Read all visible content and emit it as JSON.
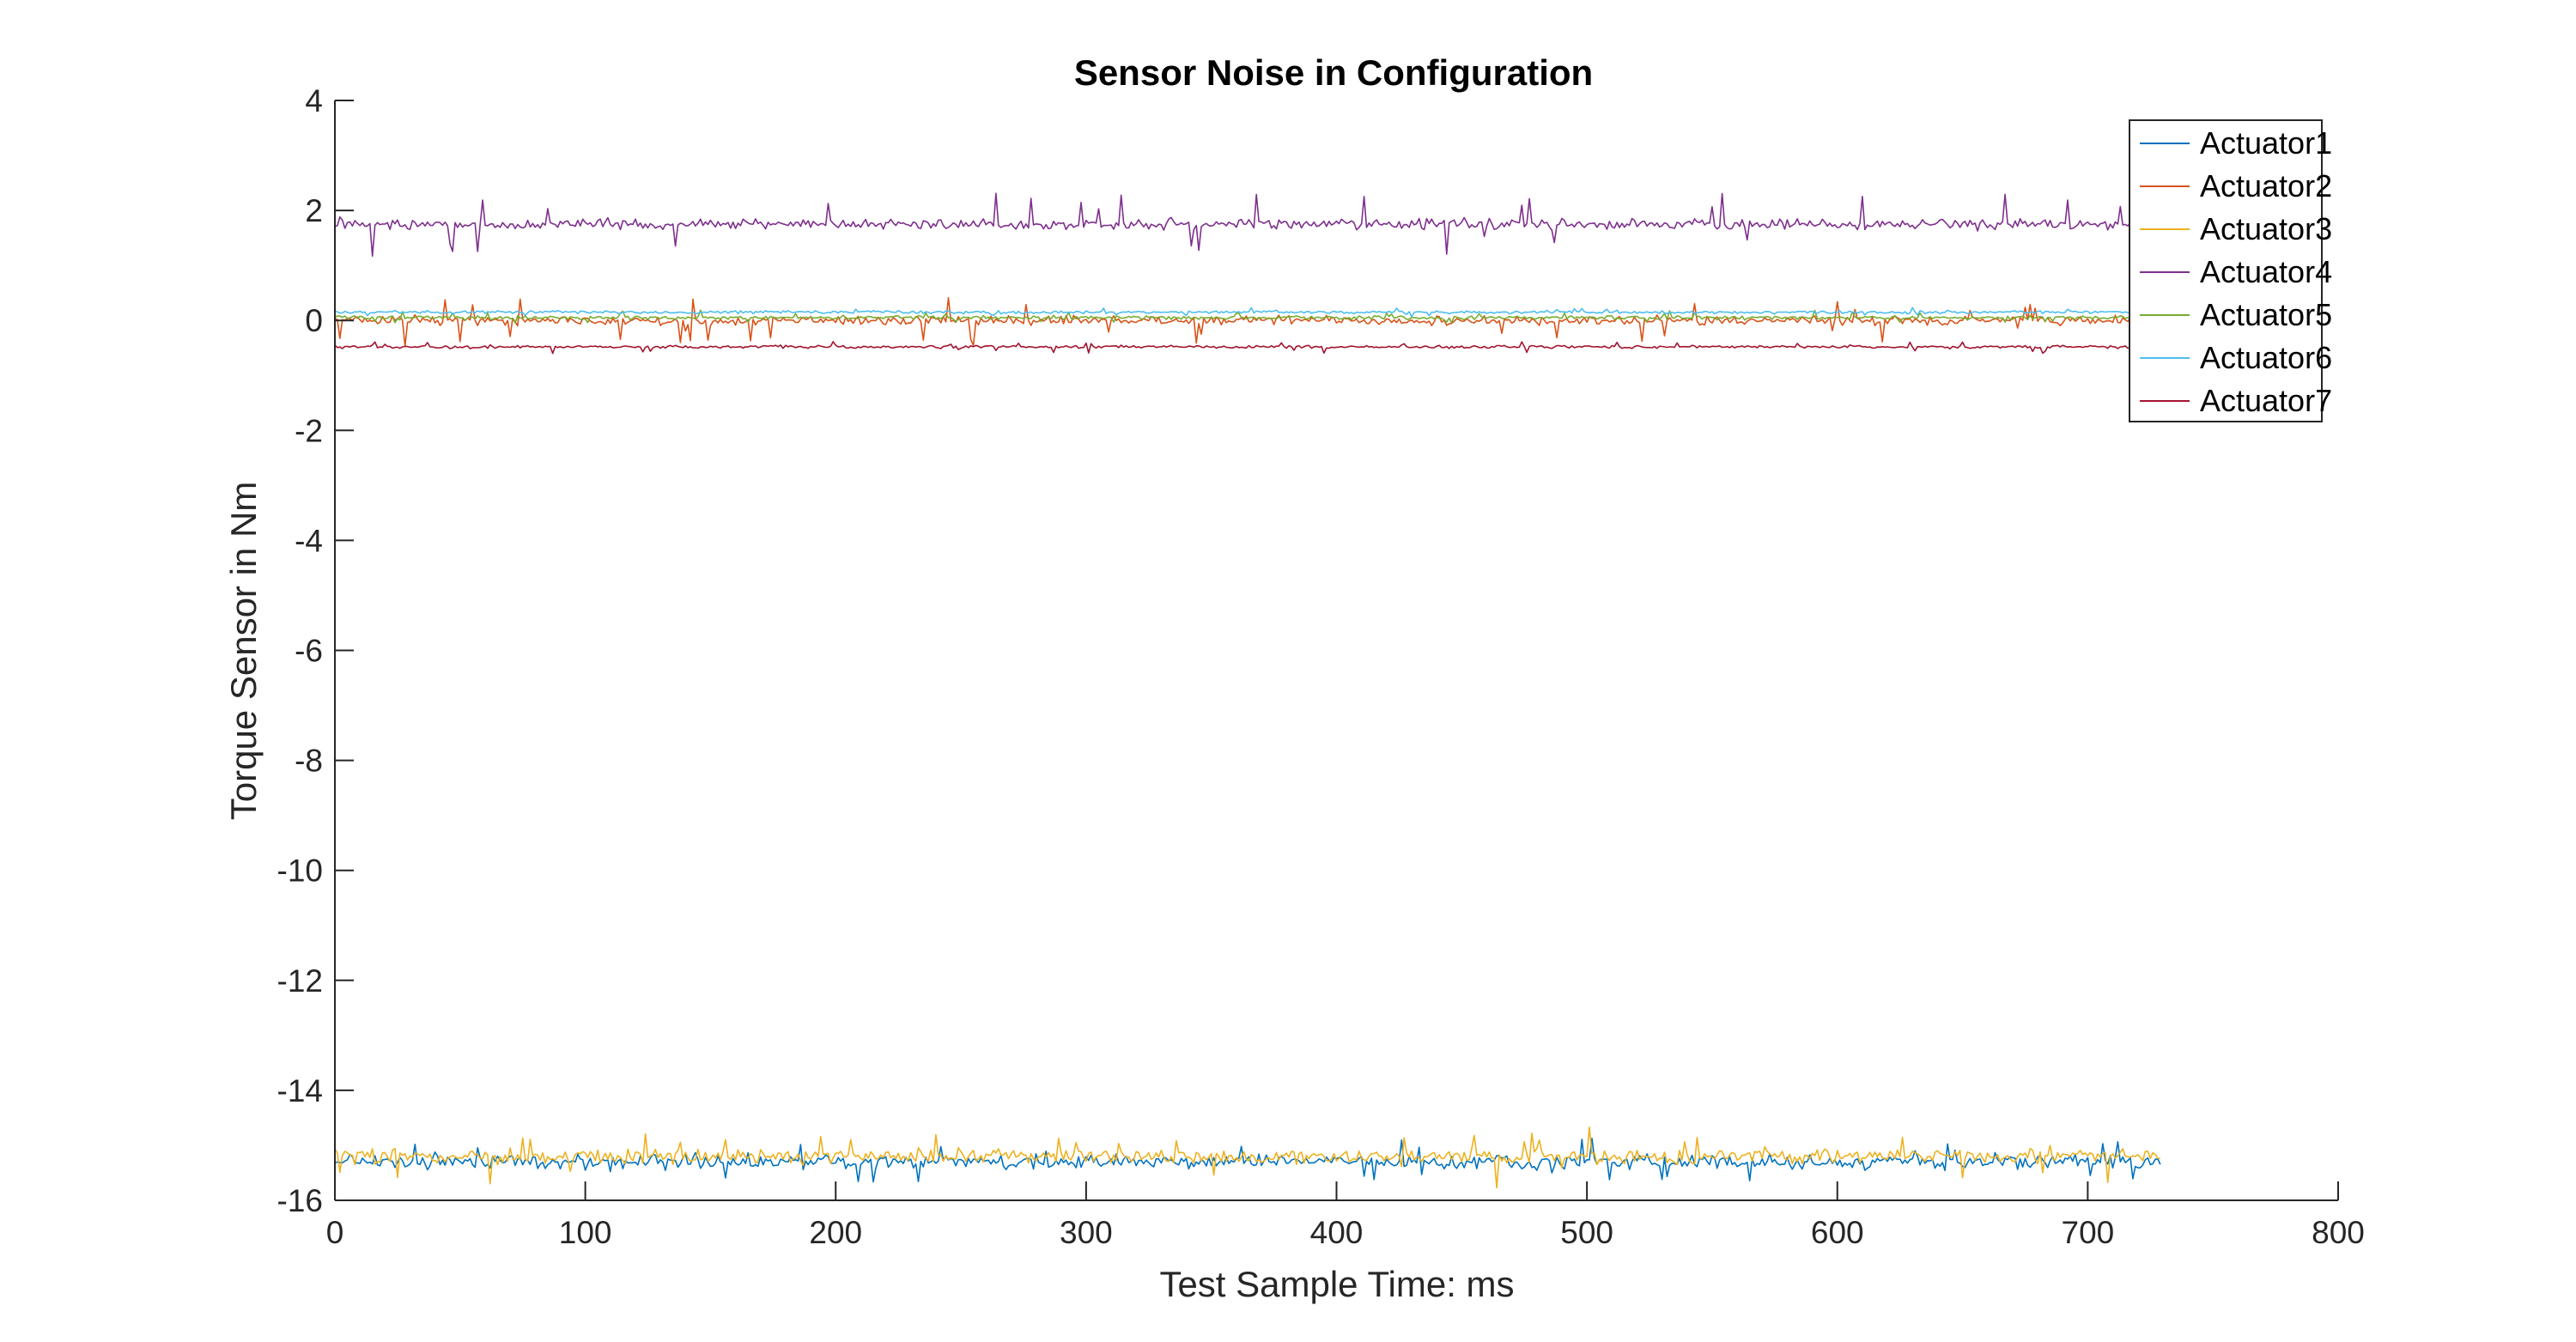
{
  "chart_data": {
    "type": "line",
    "title": "Sensor Noise in Configuration",
    "xlabel": "Test Sample Time: ms",
    "ylabel": "Torque Sensor in Nm",
    "xlim": [
      0,
      800
    ],
    "ylim": [
      -16,
      4
    ],
    "xticks": [
      0,
      100,
      200,
      300,
      400,
      500,
      600,
      700,
      800
    ],
    "yticks": [
      4,
      2,
      0,
      -2,
      -4,
      -6,
      -8,
      -10,
      -12,
      -14,
      -16
    ],
    "grid": false,
    "legend_position": "top-right",
    "x_range_of_samples": [
      0,
      729
    ],
    "series": [
      {
        "name": "Actuator1",
        "color": "#0072BD",
        "mean": -15.3,
        "noise_amplitude": 0.18,
        "spike_amplitude": 0.35
      },
      {
        "name": "Actuator2",
        "color": "#D95319",
        "mean": 0.0,
        "noise_amplitude": 0.12,
        "spike_amplitude": 0.4
      },
      {
        "name": "Actuator3",
        "color": "#EDB120",
        "mean": -15.2,
        "noise_amplitude": 0.2,
        "spike_amplitude": 0.45
      },
      {
        "name": "Actuator4",
        "color": "#7E2F8E",
        "mean": 1.75,
        "noise_amplitude": 0.14,
        "spike_amplitude": 0.55
      },
      {
        "name": "Actuator5",
        "color": "#77AC30",
        "mean": 0.05,
        "noise_amplitude": 0.05,
        "spike_amplitude": 0.12
      },
      {
        "name": "Actuator6",
        "color": "#4DBEEE",
        "mean": 0.15,
        "noise_amplitude": 0.04,
        "spike_amplitude": 0.08
      },
      {
        "name": "Actuator7",
        "color": "#A2142F",
        "mean": -0.48,
        "noise_amplitude": 0.04,
        "spike_amplitude": 0.1
      }
    ]
  }
}
